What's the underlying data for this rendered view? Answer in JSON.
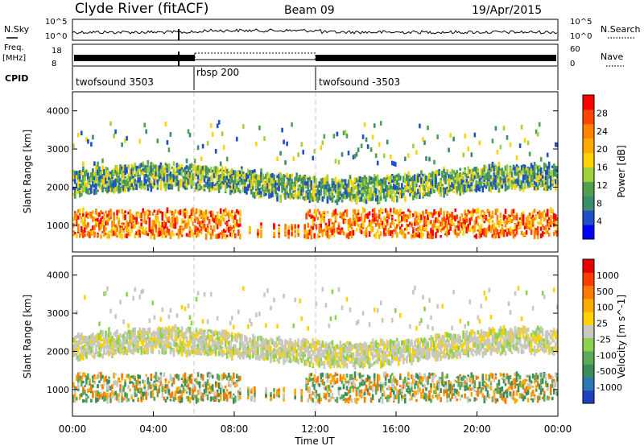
{
  "header": {
    "station": "Clyde River (fitACF)",
    "beam": "Beam 09",
    "date": "19/Apr/2015"
  },
  "panels": {
    "nsky": {
      "label": "N.Sky",
      "ticks_left": [
        "10^5",
        "10^0"
      ],
      "ticks_right": [
        "10^5",
        "10^0"
      ],
      "right_label": "N.Search"
    },
    "freq": {
      "label_line1": "Freq.",
      "label_line2": "[MHz]",
      "ticks_left": [
        "18",
        "8"
      ],
      "ticks_right": [
        "60",
        "0"
      ],
      "right_label": "Nave"
    },
    "cpid": {
      "label": "CPID",
      "modes": [
        "twofsound 3503",
        "rbsp 200",
        "twofsound -3503"
      ]
    }
  },
  "chart_data": [
    {
      "type": "heatmap",
      "name": "power",
      "ylabel": "Slant Range [km]",
      "xlabel": "",
      "ylim": [
        300,
        4500
      ],
      "yticks": [
        1000,
        2000,
        3000,
        4000
      ],
      "colorbar": {
        "label": "Power [dB]",
        "ticks": [
          "28",
          "24",
          "20",
          "16",
          "12",
          "8",
          "4"
        ],
        "colors": [
          "#0000ff",
          "#1e50c8",
          "#3c8c6e",
          "#50a050",
          "#a0d23c",
          "#ffd200",
          "#ffaa00",
          "#ff8200",
          "#ff4600",
          "#ff0000"
        ]
      }
    },
    {
      "type": "heatmap",
      "name": "velocity",
      "ylabel": "Slant Range [km]",
      "xlabel": "Time UT",
      "ylim": [
        300,
        4500
      ],
      "yticks": [
        1000,
        2000,
        3000,
        4000
      ],
      "xticks": [
        "00:00",
        "04:00",
        "08:00",
        "12:00",
        "16:00",
        "20:00",
        "00:00"
      ],
      "colorbar": {
        "label": "Velocity [m s^-1]",
        "ticks": [
          "1000",
          "500",
          "100",
          "25",
          "-25",
          "-100",
          "-500",
          "-1000"
        ],
        "colors": [
          "#2040c0",
          "#2a78b4",
          "#3c8c5a",
          "#5aaa5a",
          "#8cd24b",
          "#c8c8c0",
          "#ffd200",
          "#ffaa00",
          "#ff7800",
          "#ff3c00",
          "#e60000"
        ]
      }
    }
  ]
}
